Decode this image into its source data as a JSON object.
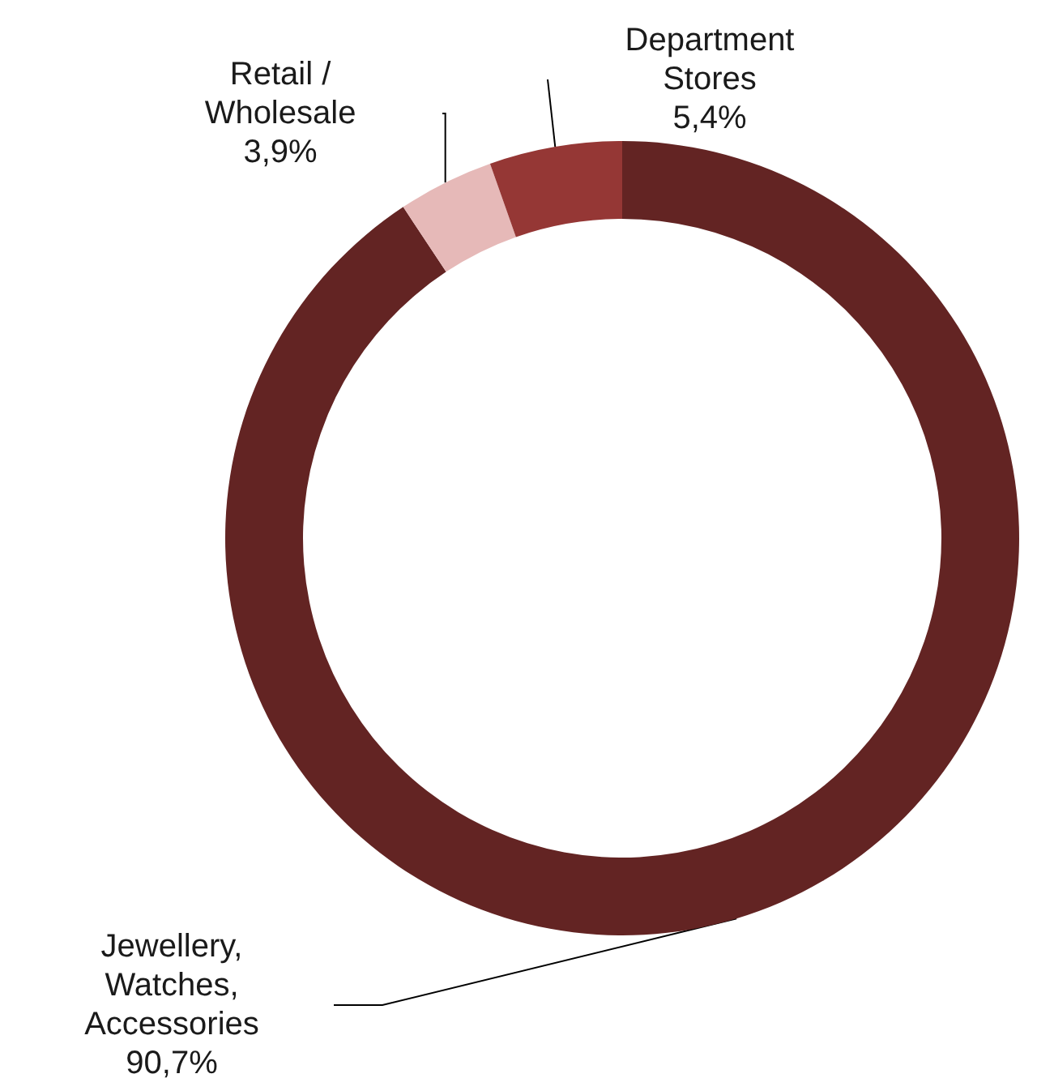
{
  "chart_data": {
    "type": "donut",
    "categories": [
      "Jewellery,\nWatches,\nAccessories",
      "Retail /\nWholesale",
      "Department\nStores"
    ],
    "values": [
      90.7,
      3.9,
      5.4
    ],
    "value_labels": [
      "90,7%",
      "3,9%",
      "5,4%"
    ],
    "colors": [
      "#632423",
      "#e6b9b8",
      "#953735"
    ],
    "legend": false
  }
}
